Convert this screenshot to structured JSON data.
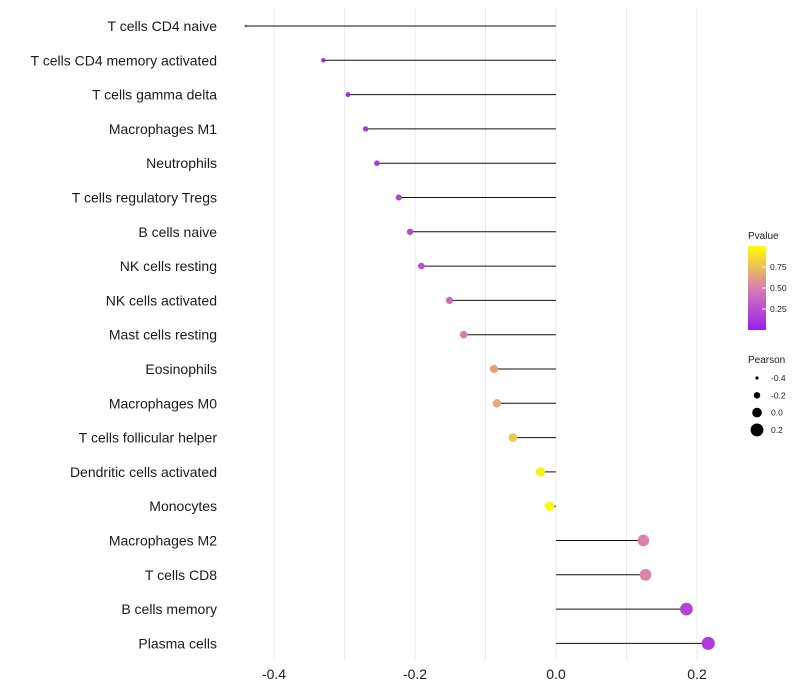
{
  "chart_data": {
    "type": "lollipop",
    "categories": [
      "T cells CD4 naive",
      "T cells CD4 memory activated",
      "T cells gamma delta",
      "Macrophages M1",
      "Neutrophils",
      "T cells regulatory  Tregs",
      "B cells naive",
      "NK cells resting",
      "NK cells activated",
      "Mast cells resting",
      "Eosinophils",
      "Macrophages M0",
      "T cells follicular helper",
      "Dendritic cells activated",
      "Monocytes",
      "Macrophages M2",
      "T cells CD8",
      "B cells memory",
      "Plasma cells"
    ],
    "pearson": [
      -0.44,
      -0.33,
      -0.295,
      -0.27,
      -0.254,
      -0.223,
      -0.207,
      -0.191,
      -0.151,
      -0.131,
      -0.088,
      -0.084,
      -0.061,
      -0.022,
      -0.009,
      0.124,
      0.127,
      0.185,
      0.216
    ],
    "pvalue": [
      0.001,
      0.03,
      0.07,
      0.1,
      0.13,
      0.18,
      0.21,
      0.25,
      0.4,
      0.48,
      0.65,
      0.67,
      0.78,
      0.95,
      0.98,
      0.52,
      0.52,
      0.2,
      0.15
    ],
    "xlim": [
      -0.44,
      0.24
    ],
    "x_ticks": [
      -0.4,
      -0.2,
      0.0,
      0.2
    ],
    "x_tick_labels": [
      "-0.4",
      "-0.2",
      "0.0",
      "0.2"
    ],
    "xlabel": "",
    "ylabel": "",
    "legend_color": {
      "title": "Pvalue",
      "ticks": [
        0.75,
        0.5,
        0.25
      ],
      "tick_labels": [
        "0.75",
        "0.50",
        "0.25"
      ],
      "colors": [
        "#9b1ef0",
        "#d87fb0",
        "#ffff00"
      ]
    },
    "legend_size": {
      "title": "Pearson",
      "values": [
        -0.4,
        -0.2,
        0.0,
        0.2
      ],
      "labels": [
        "-0.4",
        "-0.2",
        "0.0",
        "0.2"
      ]
    }
  }
}
